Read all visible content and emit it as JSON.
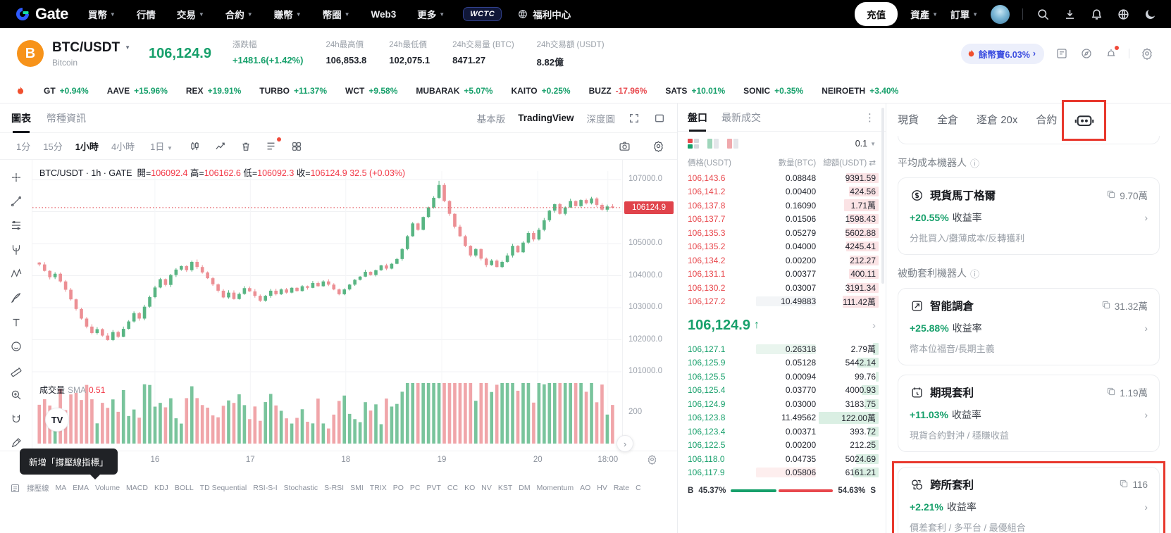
{
  "colors": {
    "up": "#17a06b",
    "down": "#e8484d",
    "candle_up": "#58b583",
    "candle_down": "#ec8f94",
    "tag_red": "#e0434b",
    "highlight_red": "#e8382d",
    "promo_blue": "#3d4fe0",
    "brand_orange": "#f7931a"
  },
  "nav": {
    "brand": "Gate",
    "items": [
      {
        "label": "買幣",
        "caret": true
      },
      {
        "label": "行情",
        "caret": false
      },
      {
        "label": "交易",
        "caret": true
      },
      {
        "label": "合約",
        "caret": true
      },
      {
        "label": "賺幣",
        "caret": true
      },
      {
        "label": "幣圈",
        "caret": true
      },
      {
        "label": "Web3",
        "caret": false
      },
      {
        "label": "更多",
        "caret": true
      }
    ],
    "wctc": "WCTC",
    "welfare": "福利中心",
    "deposit": "充值",
    "assets": "資產",
    "orders": "訂單"
  },
  "ticker": {
    "pair": "BTC/USDT",
    "coin_initial": "B",
    "name": "Bitcoin",
    "price": "106,124.9",
    "stats": [
      {
        "label": "漲跌幅",
        "value": "+1481.6(+1.42%)",
        "tone": "up"
      },
      {
        "label": "24h最高價",
        "value": "106,853.8",
        "tone": ""
      },
      {
        "label": "24h最低價",
        "value": "102,075.1",
        "tone": ""
      },
      {
        "label": "24h交易量 (BTC)",
        "value": "8471.27",
        "tone": ""
      },
      {
        "label": "24h交易額 (USDT)",
        "value": "8.82億",
        "tone": ""
      }
    ],
    "promo": "餘幣寶6.03%",
    "promo_chev": "›"
  },
  "hotbar": {
    "items": [
      {
        "sym": "GT",
        "pct": "+0.94%",
        "dir": "up"
      },
      {
        "sym": "AAVE",
        "pct": "+15.96%",
        "dir": "up"
      },
      {
        "sym": "REX",
        "pct": "+19.91%",
        "dir": "up"
      },
      {
        "sym": "TURBO",
        "pct": "+11.37%",
        "dir": "up"
      },
      {
        "sym": "WCT",
        "pct": "+9.58%",
        "dir": "up"
      },
      {
        "sym": "MUBARAK",
        "pct": "+5.07%",
        "dir": "up"
      },
      {
        "sym": "KAITO",
        "pct": "+0.25%",
        "dir": "up"
      },
      {
        "sym": "BUZZ",
        "pct": "-17.96%",
        "dir": "down"
      },
      {
        "sym": "SATS",
        "pct": "+10.01%",
        "dir": "up"
      },
      {
        "sym": "SONIC",
        "pct": "+0.35%",
        "dir": "up"
      },
      {
        "sym": "NEIROETH",
        "pct": "+3.40%",
        "dir": "up"
      }
    ]
  },
  "chart": {
    "tabs": [
      "圖表",
      "幣種資訊"
    ],
    "modes": [
      "基本版",
      "TradingView",
      "深度圖"
    ],
    "active_mode": 1,
    "timeframes": [
      "1分",
      "15分",
      "1小時",
      "4小時",
      "1日"
    ],
    "active_timeframe": 2,
    "ohlc": {
      "prefix": "BTC/USDT · 1h · GATE",
      "o_label": "開=",
      "o": "106092.4",
      "h_label": "高=",
      "h": "106162.6",
      "l_label": "低=",
      "l": "106092.3",
      "c_label": "收=",
      "c": "106124.9",
      "chg": "32.5 (+0.03%)"
    },
    "axis": [
      {
        "label": "107000.0",
        "p": 107000
      },
      {
        "label": "106000.0",
        "p": 106000
      },
      {
        "label": "105000.0",
        "p": 105000
      },
      {
        "label": "104000.0",
        "p": 104000
      },
      {
        "label": "103000.0",
        "p": 103000
      },
      {
        "label": "102000.0",
        "p": 102000
      },
      {
        "label": "101000.0",
        "p": 101000
      }
    ],
    "vol_axis": "200",
    "price_tag": "106124.9",
    "volume_label": {
      "k": "成交量",
      "sma": "SMA",
      "v": "0.51"
    },
    "xticks": [
      "16",
      "17",
      "18",
      "19",
      "20",
      "18:00"
    ],
    "indicators": [
      "撐壓線",
      "MA",
      "EMA",
      "Volume",
      "MACD",
      "KDJ",
      "BOLL",
      "TD Sequential",
      "RSI-S-I",
      "Stochastic",
      "S-RSI",
      "SMI",
      "TRIX",
      "PO",
      "PC",
      "PVT",
      "CC",
      "KO",
      "NV",
      "KST",
      "DM",
      "Momentum",
      "AO",
      "HV",
      "Rate",
      "C"
    ],
    "tooltip": "新增「撐壓線指標」",
    "tv_logo": "TV"
  },
  "chart_data": {
    "type": "candlestick",
    "pair": "BTC/USDT",
    "interval": "1h",
    "price_range": [
      101000,
      107000
    ],
    "last_close": 106124.9,
    "closes": [
      104350,
      104150,
      103950,
      104060,
      103820,
      103560,
      103260,
      102960,
      102660,
      102410,
      102210,
      102330,
      102130,
      101990,
      102240,
      102090,
      102340,
      102570,
      102830,
      102660,
      103030,
      103330,
      103630,
      103890,
      103710,
      104020,
      104190,
      104300,
      104170,
      104430,
      104270,
      104100,
      103920,
      103730,
      103530,
      103320,
      103470,
      103270,
      103430,
      103610,
      103510,
      103370,
      103220,
      103370,
      103530,
      103420,
      103570,
      103470,
      103620,
      103520,
      103670,
      103620,
      103770,
      103670,
      103820,
      103720,
      103570,
      103420,
      103570,
      103720,
      103870,
      103970,
      104120,
      104020,
      104170,
      104320,
      104220,
      104370,
      104520,
      104830,
      105230,
      105630,
      105430,
      105830,
      106130,
      106430,
      106830,
      106330,
      105930,
      105530,
      105230,
      104930,
      104630,
      104830,
      104530,
      104330,
      104470,
      104270,
      104430,
      104630,
      104930,
      104730,
      105030,
      105330,
      105130,
      105430,
      105730,
      106030,
      106230,
      105930,
      106130,
      106330,
      106170,
      106360,
      106260,
      106410,
      106210,
      106060,
      106160,
      106124.9
    ]
  },
  "orderbook": {
    "tabs": [
      "盤口",
      "最新成交"
    ],
    "precision": "0.1",
    "cols": [
      "價格(USDT)",
      "數量(BTC)",
      "總額(USDT)"
    ],
    "swap_glyph": "⇄",
    "asks": [
      {
        "p": "106,143.6",
        "a": "0.08848",
        "t": "9391.59",
        "d": 54
      },
      {
        "p": "106,141.2",
        "a": "0.00400",
        "t": "424.56",
        "d": 50
      },
      {
        "p": "106,137.8",
        "a": "0.16090",
        "t": "1.71萬",
        "d": 58
      },
      {
        "p": "106,137.7",
        "a": "0.01506",
        "t": "1598.43",
        "d": 52
      },
      {
        "p": "106,135.3",
        "a": "0.05279",
        "t": "5602.88",
        "d": 56
      },
      {
        "p": "106,135.2",
        "a": "0.04000",
        "t": "4245.41",
        "d": 54
      },
      {
        "p": "106,134.2",
        "a": "0.00200",
        "t": "212.27",
        "d": 48
      },
      {
        "p": "106,131.1",
        "a": "0.00377",
        "t": "400.11",
        "d": 50
      },
      {
        "p": "106,130.2",
        "a": "0.03007",
        "t": "3191.34",
        "d": 53
      },
      {
        "p": "106,127.2",
        "a": "10.49883",
        "t": "111.42萬",
        "d": 60,
        "abg": "#f3f5f7"
      }
    ],
    "last": "106,124.9",
    "last_arrow": "↑",
    "bids": [
      {
        "p": "106,127.1",
        "a": "0.26318",
        "t": "2.79萬",
        "d": 10,
        "abg": "#e9f5ee"
      },
      {
        "p": "106,125.9",
        "a": "0.05128",
        "t": "5442.14",
        "d": 35
      },
      {
        "p": "106,125.5",
        "a": "0.00094",
        "t": "99.76",
        "d": 5
      },
      {
        "p": "106,125.4",
        "a": "0.03770",
        "t": "4000.93",
        "d": 28
      },
      {
        "p": "106,124.9",
        "a": "0.03000",
        "t": "3183.75",
        "d": 24
      },
      {
        "p": "106,123.8",
        "a": "11.49562",
        "t": "122.00萬",
        "d": 100
      },
      {
        "p": "106,123.4",
        "a": "0.00371",
        "t": "393.72",
        "d": 18
      },
      {
        "p": "106,122.5",
        "a": "0.00200",
        "t": "212.25",
        "d": 14
      },
      {
        "p": "106,118.0",
        "a": "0.04735",
        "t": "5024.69",
        "d": 38
      },
      {
        "p": "106,117.9",
        "a": "0.05806",
        "t": "6161.21",
        "d": 42,
        "abg": "#fdeeee"
      }
    ],
    "buy_letter": "B",
    "buy_pct": "45.37%",
    "sell_pct": "54.63%",
    "sell_letter": "S"
  },
  "bots": {
    "tabs": [
      "現貨",
      "全倉",
      "逐倉 20x",
      "合約"
    ],
    "roi_label": "收益率",
    "sections": [
      {
        "title": "平均成本機器人",
        "cards": [
          {
            "icon": "martingale",
            "title": "現貨馬丁格爾",
            "count": "9.70萬",
            "roi": "+20.55%",
            "desc": "分批買入/攤薄成本/反轉獲利",
            "highlighted": false
          }
        ]
      },
      {
        "title": "被動套利機器人",
        "cards": [
          {
            "icon": "rebalance",
            "title": "智能調倉",
            "count": "31.32萬",
            "roi": "+25.88%",
            "desc": "幣本位福音/長期主義",
            "highlighted": false
          },
          {
            "icon": "futures-arb",
            "title": "期現套利",
            "count": "1.19萬",
            "roi": "+11.03%",
            "desc": "現貨合約對沖 / 穩賺收益",
            "highlighted": false
          },
          {
            "icon": "cross-exchange",
            "title": "跨所套利",
            "count": "116",
            "roi": "+2.21%",
            "desc": "價差套利 / 多平台 / 最優組合",
            "highlighted": true
          }
        ]
      }
    ]
  }
}
